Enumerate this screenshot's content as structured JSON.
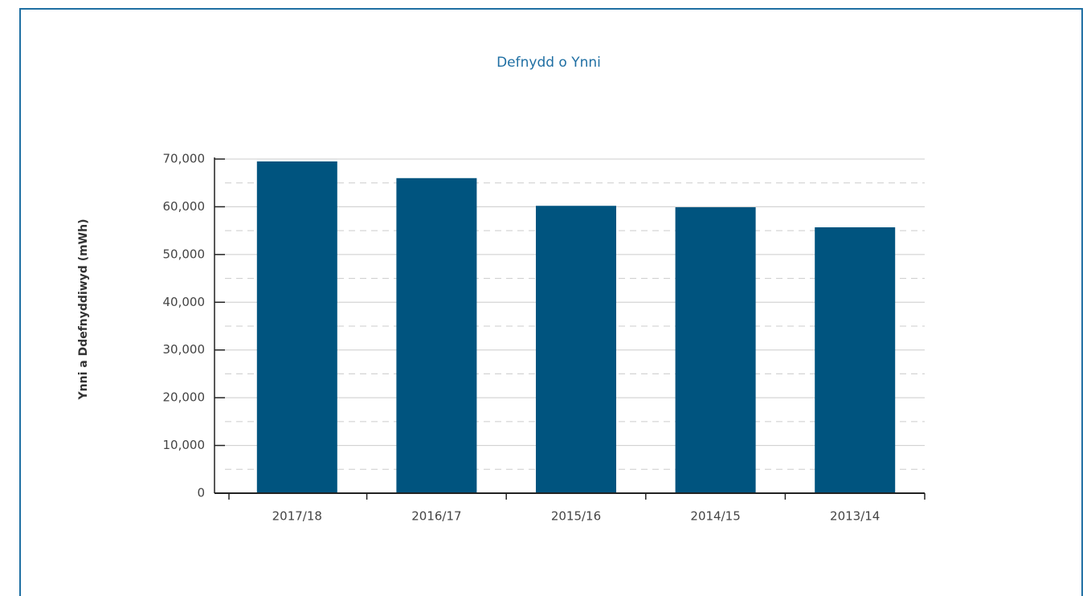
{
  "chart_data": {
    "type": "bar",
    "title": "Defnydd o Ynni",
    "y_label": "Ynni a Ddefnyddiwyd (mWh)",
    "categories": [
      "2017/18",
      "2016/17",
      "2015/16",
      "2014/15",
      "2013/14"
    ],
    "values": [
      69500,
      66000,
      60200,
      59900,
      55700
    ],
    "color": "#00547f",
    "ylim": [
      0,
      70000
    ],
    "yticks": [
      0,
      {
        "value": 10000,
        "label": "10,000"
      },
      {
        "value": 20000,
        "label": "20,000"
      },
      {
        "value": 30000,
        "label": "30,000"
      },
      {
        "value": 40000,
        "label": "40,000"
      },
      {
        "value": 50000,
        "label": "50,000"
      },
      {
        "value": 60000,
        "label": "60,000"
      },
      {
        "value": 70000,
        "label": "70,000"
      }
    ],
    "grid": true,
    "minor_grid": true
  }
}
